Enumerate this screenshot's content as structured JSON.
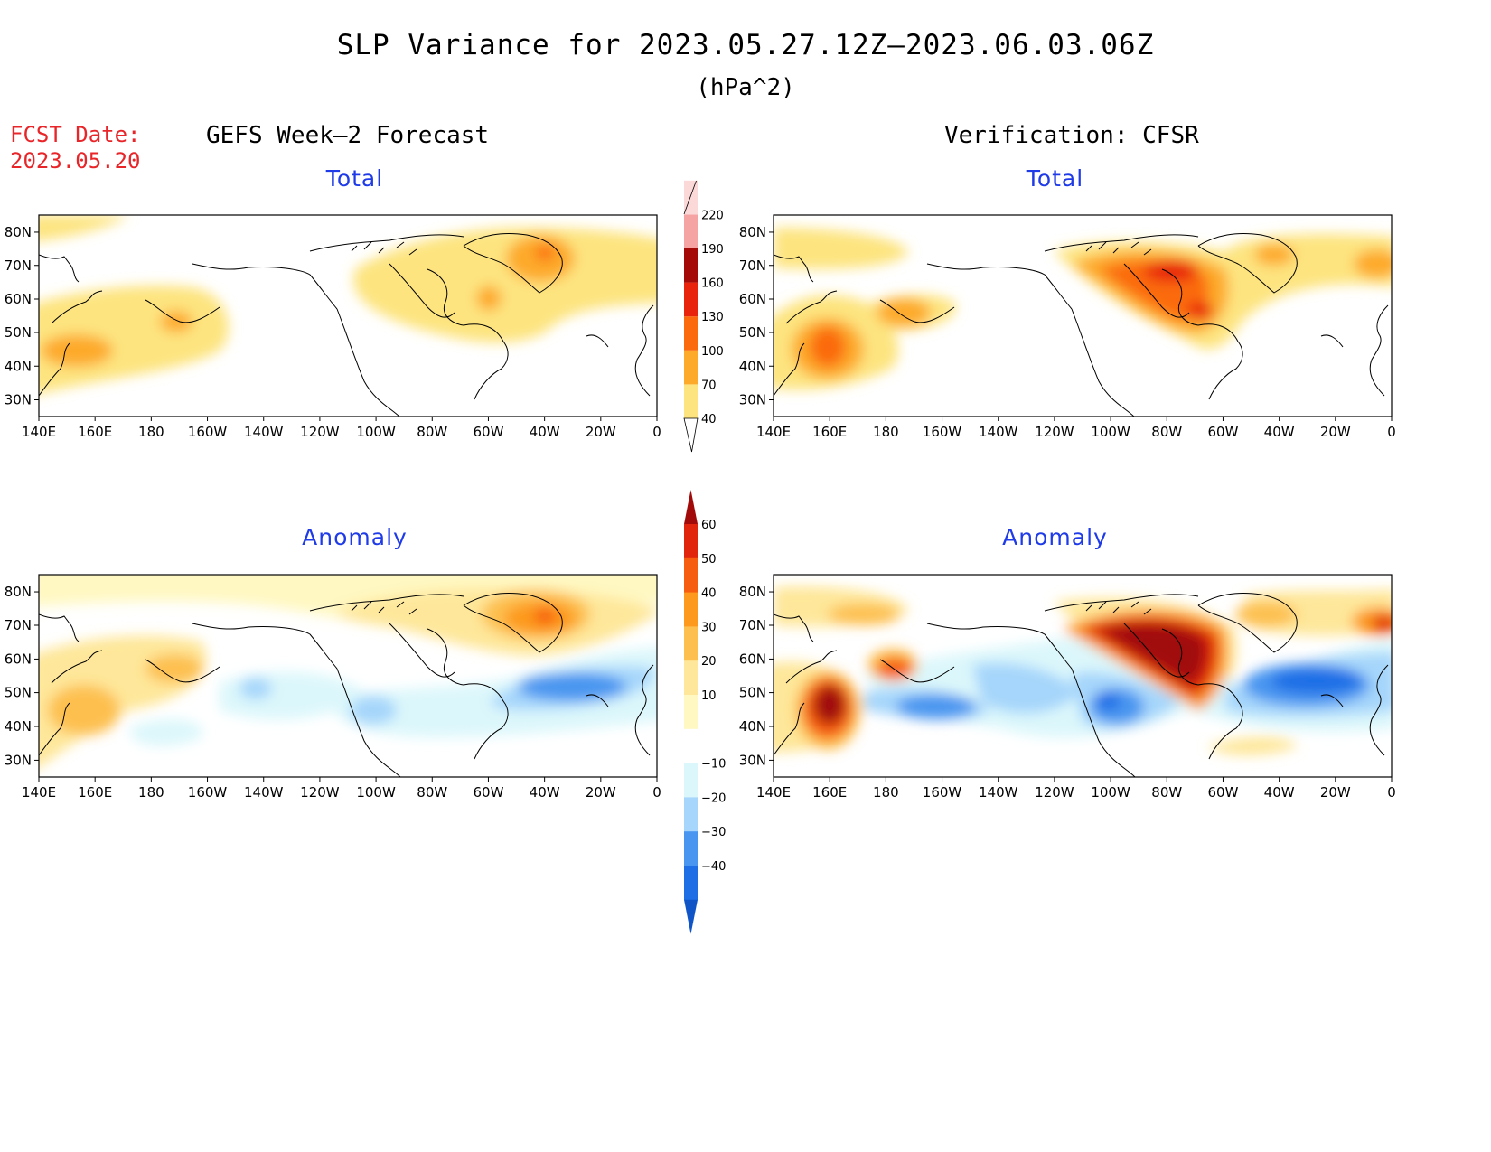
{
  "title": "SLP Variance for 2023.05.27.12Z–2023.06.03.06Z",
  "units": "(hPa^2)",
  "forecast_date": {
    "label": "FCST Date:",
    "value": "2023.05.20"
  },
  "columns": {
    "left": "GEFS Week–2 Forecast",
    "right": "Verification: CFSR"
  },
  "panels": [
    {
      "id": "forecast-total",
      "subtitle": "Total"
    },
    {
      "id": "verification-total",
      "subtitle": "Total"
    },
    {
      "id": "forecast-anomaly",
      "subtitle": "Anomaly"
    },
    {
      "id": "verification-anomaly",
      "subtitle": "Anomaly"
    }
  ],
  "lon_ticks": [
    "140E",
    "160E",
    "180",
    "160W",
    "140W",
    "120W",
    "100W",
    "80W",
    "60W",
    "40W",
    "20W",
    "0"
  ],
  "lat_ticks": [
    "80N",
    "70N",
    "60N",
    "50N",
    "40N",
    "30N"
  ],
  "colorbars": {
    "total": {
      "levels": [
        "40",
        "70",
        "100",
        "130",
        "160",
        "190",
        "220"
      ],
      "colors": [
        "#fde47f",
        "#fdaa2a",
        "#fb6a0d",
        "#e8240c",
        "#a30a08",
        "#f5a3a3",
        "#fcd9d9"
      ]
    },
    "anomaly": {
      "levels": [
        "60",
        "50",
        "40",
        "30",
        "20",
        "10",
        "−10",
        "−20",
        "−30",
        "−40"
      ],
      "colors": [
        "#a10a08",
        "#e0250c",
        "#f75d0f",
        "#fd9a1e",
        "#fdc04f",
        "#fee79a",
        "#fff8c2",
        "#ffffff",
        "#dcf7fb",
        "#a6d6fb",
        "#4896f0",
        "#1e6ee6",
        "#0f55c8"
      ]
    }
  },
  "chart_data": {
    "type": "heatmap",
    "variable": "SLP Variance",
    "units": "hPa^2",
    "projection": "lat-lon",
    "lon_range": [
      "140E",
      "0"
    ],
    "lat_range": [
      "25N",
      "85N"
    ],
    "panels": [
      {
        "name": "GEFS Week-2 Forecast Total",
        "features": [
          {
            "lon": 163,
            "lat": 44,
            "value": 100
          },
          {
            "lon": -178,
            "lat": 54,
            "value": 100
          },
          {
            "lon": -40,
            "lat": 73,
            "value": 130
          },
          {
            "lon": -57,
            "lat": 62,
            "value": 100
          },
          {
            "lon": -65,
            "lat": 65,
            "value": 70
          }
        ]
      },
      {
        "name": "Verification CFSR Total",
        "features": [
          {
            "lon": 160,
            "lat": 45,
            "value": 130
          },
          {
            "lon": -178,
            "lat": 56,
            "value": 100
          },
          {
            "lon": -80,
            "lat": 65,
            "value": 160
          },
          {
            "lon": -68,
            "lat": 56,
            "value": 130
          },
          {
            "lon": -50,
            "lat": 73,
            "value": 100
          },
          {
            "lon": -5,
            "lat": 70,
            "value": 100
          }
        ]
      },
      {
        "name": "GEFS Week-2 Forecast Anomaly",
        "features": [
          {
            "lon": -40,
            "lat": 73,
            "value": 40
          },
          {
            "lon": -175,
            "lat": 57,
            "value": 30
          },
          {
            "lon": 155,
            "lat": 47,
            "value": 30
          },
          {
            "lon": -40,
            "lat": 52,
            "value": -40
          },
          {
            "lon": -138,
            "lat": 52,
            "value": -20
          },
          {
            "lon": -105,
            "lat": 47,
            "value": -20
          }
        ]
      },
      {
        "name": "Verification CFSR Anomaly",
        "features": [
          {
            "lon": 160,
            "lat": 46,
            "value": 60
          },
          {
            "lon": -178,
            "lat": 56,
            "value": 50
          },
          {
            "lon": -80,
            "lat": 65,
            "value": 60
          },
          {
            "lon": -30,
            "lat": 55,
            "value": -40
          },
          {
            "lon": -100,
            "lat": 47,
            "value": -40
          },
          {
            "lon": -160,
            "lat": 47,
            "value": -30
          },
          {
            "lon": -5,
            "lat": 70,
            "value": 40
          }
        ]
      }
    ]
  }
}
